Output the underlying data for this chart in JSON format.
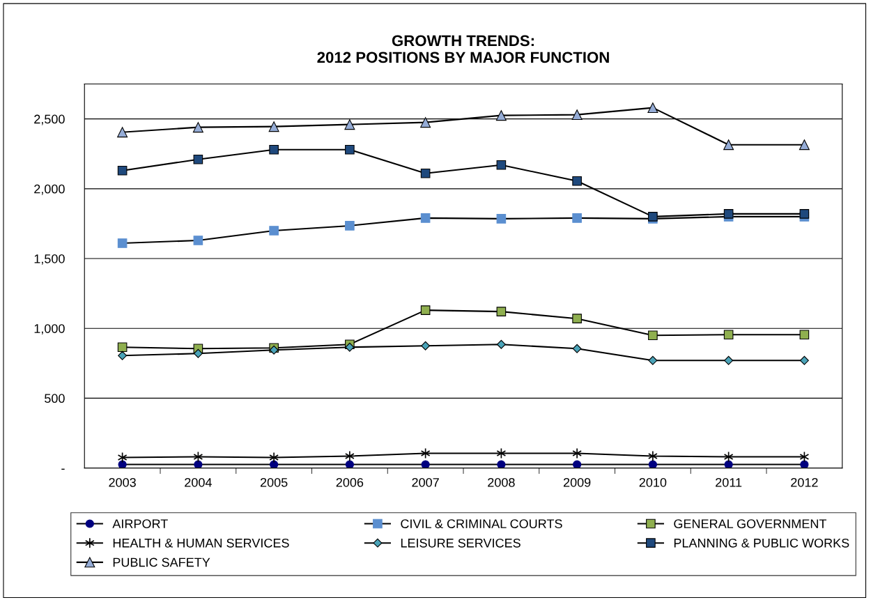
{
  "chart_data": {
    "type": "line",
    "title": "GROWTH TRENDS:\n2012 POSITIONS BY MAJOR FUNCTION",
    "categories": [
      "2003",
      "2004",
      "2005",
      "2006",
      "2007",
      "2008",
      "2009",
      "2010",
      "2011",
      "2012"
    ],
    "series": [
      {
        "name": "AIRPORT",
        "color": "#000080",
        "marker": "circle",
        "values": [
          25,
          25,
          25,
          25,
          25,
          25,
          25,
          25,
          25,
          25
        ]
      },
      {
        "name": "CIVIL & CRIMINAL COURTS",
        "color": "#5b8fd0",
        "marker": "square",
        "values": [
          1610,
          1630,
          1700,
          1735,
          1790,
          1785,
          1790,
          1785,
          1800,
          1800
        ]
      },
      {
        "name": "GENERAL GOVERNMENT",
        "color": "#8faf4f",
        "marker": "square",
        "values": [
          865,
          855,
          860,
          885,
          1130,
          1120,
          1070,
          950,
          955,
          955
        ]
      },
      {
        "name": "HEALTH & HUMAN SERVICES",
        "color": "#000000",
        "marker": "cross",
        "values": [
          75,
          80,
          75,
          85,
          105,
          105,
          105,
          85,
          80,
          80
        ]
      },
      {
        "name": "LEISURE SERVICES",
        "color": "#4aa3b8",
        "marker": "diamond",
        "values": [
          805,
          820,
          845,
          865,
          875,
          885,
          855,
          770,
          770,
          770
        ]
      },
      {
        "name": "PLANNING & PUBLIC WORKS",
        "color": "#1f497d",
        "marker": "square",
        "values": [
          2130,
          2210,
          2280,
          2280,
          2110,
          2170,
          2055,
          1800,
          1820,
          1820
        ]
      },
      {
        "name": "PUBLIC SAFETY",
        "color": "#95acd6",
        "marker": "triangle",
        "values": [
          2405,
          2440,
          2445,
          2460,
          2475,
          2525,
          2530,
          2580,
          2315,
          2315
        ]
      }
    ],
    "ylim": [
      0,
      2750
    ],
    "yticks": [
      {
        "value": 0,
        "label": "-"
      },
      {
        "value": 500,
        "label": "500"
      },
      {
        "value": 1000,
        "label": "1,000"
      },
      {
        "value": 1500,
        "label": "1,500"
      },
      {
        "value": 2000,
        "label": "2,000"
      },
      {
        "value": 2500,
        "label": "2,500"
      }
    ],
    "grid": "y",
    "legend": "bottom",
    "line_style": "solid"
  }
}
